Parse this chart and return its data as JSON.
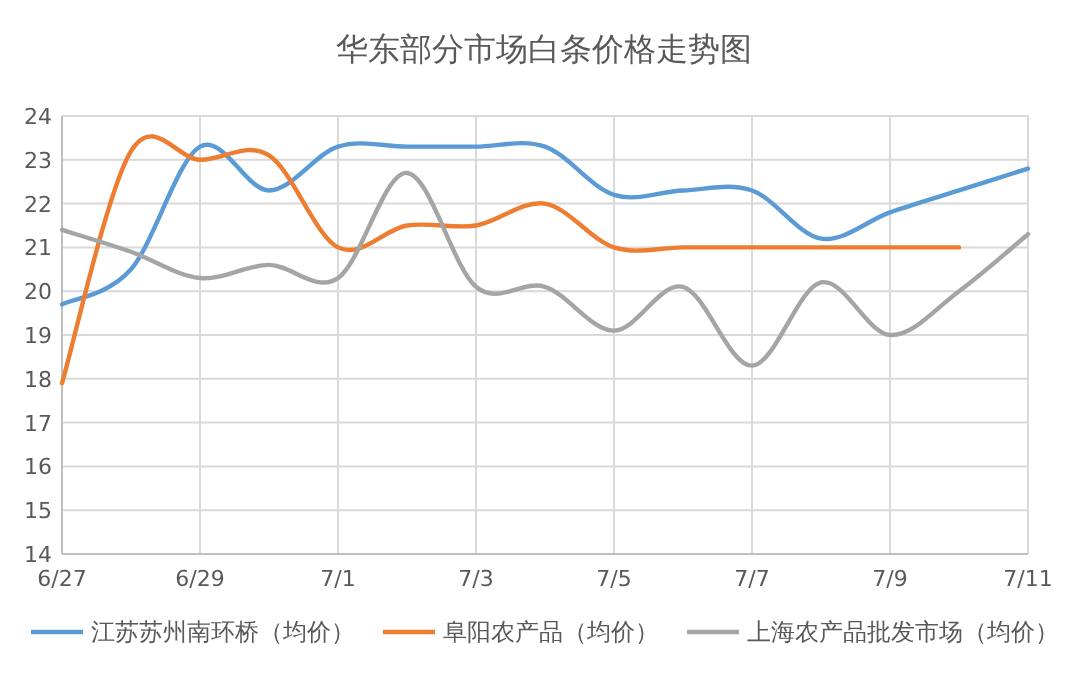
{
  "chart_data": {
    "type": "line",
    "title": "华东部分市场白条价格走势图",
    "categories": [
      "6/27",
      null,
      "6/29",
      null,
      "7/1",
      null,
      "7/3",
      null,
      "7/5",
      null,
      "7/7",
      null,
      "7/9",
      null,
      "7/11"
    ],
    "series": [
      {
        "name": "江苏苏州南环桥（均价）",
        "color": "#5b9bd5",
        "values": [
          19.7,
          20.5,
          23.3,
          22.3,
          23.3,
          23.3,
          23.3,
          23.3,
          22.2,
          22.3,
          22.3,
          21.2,
          21.8,
          22.3,
          22.8
        ]
      },
      {
        "name": "阜阳农产品（均价）",
        "color": "#ed7d31",
        "values": [
          17.9,
          23.2,
          23.0,
          23.1,
          21.0,
          21.5,
          21.5,
          22.0,
          21.0,
          21.0,
          21.0,
          21.0,
          21.0,
          21.0,
          null
        ]
      },
      {
        "name": "上海农产品批发市场（均价）",
        "color": "#a5a5a5",
        "values": [
          21.4,
          20.9,
          20.3,
          20.6,
          20.3,
          22.7,
          20.1,
          20.1,
          19.1,
          20.1,
          18.3,
          20.2,
          19.0,
          20.0,
          21.3
        ]
      }
    ],
    "ylim": [
      14,
      24
    ],
    "yticks": [
      14,
      15,
      16,
      17,
      18,
      19,
      20,
      21,
      22,
      23,
      24
    ],
    "grid": true,
    "legend": "bottom",
    "marker": "none",
    "line_style": "solid"
  }
}
